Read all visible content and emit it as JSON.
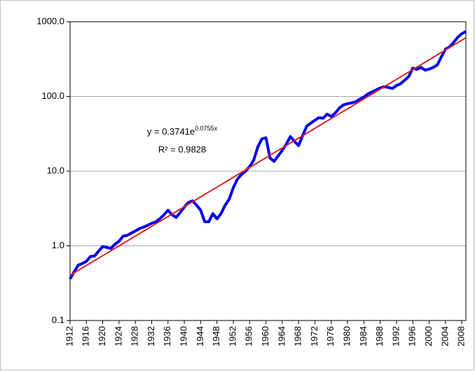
{
  "chart_data": {
    "type": "line",
    "log_scale": true,
    "grid": true,
    "categories": [
      1912,
      null,
      null,
      null,
      1916,
      null,
      null,
      null,
      1920,
      null,
      null,
      null,
      1924,
      null,
      null,
      null,
      1928,
      null,
      null,
      null,
      1932,
      null,
      null,
      null,
      1936,
      null,
      null,
      null,
      1940,
      null,
      null,
      null,
      1944,
      null,
      null,
      null,
      1948,
      null,
      null,
      null,
      1952,
      null,
      null,
      null,
      1956,
      null,
      null,
      null,
      1960,
      null,
      null,
      null,
      1964,
      null,
      null,
      null,
      1968,
      null,
      null,
      null,
      1972,
      null,
      null,
      null,
      1976,
      null,
      null,
      null,
      1980,
      null,
      null,
      null,
      1984,
      null,
      null,
      null,
      1988,
      null,
      null,
      null,
      1992,
      null,
      null,
      null,
      1996,
      null,
      null,
      null,
      2000,
      null,
      null,
      null,
      2004,
      null,
      null,
      null,
      2008,
      null
    ],
    "series": [
      {
        "color": "#0000ee",
        "values": [
          0.36,
          0.45,
          0.55,
          0.58,
          0.62,
          0.72,
          0.73,
          0.85,
          0.98,
          0.95,
          0.92,
          1.05,
          1.15,
          1.35,
          1.38,
          1.48,
          1.58,
          1.7,
          1.78,
          1.88,
          2.0,
          2.1,
          2.3,
          2.6,
          3.0,
          2.6,
          2.4,
          2.8,
          3.3,
          3.8,
          4.0,
          3.5,
          3.0,
          2.1,
          2.1,
          2.7,
          2.3,
          2.7,
          3.5,
          4.2,
          6.0,
          7.8,
          9.0,
          10.0,
          11.5,
          14,
          21,
          27,
          28,
          15,
          13.5,
          16,
          19,
          23,
          29,
          25,
          22,
          30,
          40,
          44,
          48,
          52,
          51,
          58,
          54,
          60,
          70,
          77,
          80,
          82,
          85,
          92,
          98,
          108,
          115,
          122,
          130,
          135,
          132,
          128,
          140,
          148,
          165,
          185,
          240,
          230,
          245,
          225,
          232,
          245,
          265,
          340,
          430,
          460,
          530,
          620,
          690,
          740
        ]
      },
      {
        "color": "#e02020",
        "values": [
          0.403,
          0.435,
          0.469,
          0.506,
          0.546,
          0.588,
          0.634,
          0.684,
          0.738,
          0.796,
          0.858,
          0.925,
          0.998,
          1.076,
          1.16,
          1.251,
          1.349,
          1.455,
          1.569,
          1.692,
          1.825,
          1.968,
          2.122,
          2.289,
          2.468,
          2.662,
          2.871,
          3.096,
          3.339,
          3.6,
          3.883,
          4.187,
          4.515,
          4.869,
          5.251,
          5.663,
          6.107,
          6.586,
          7.102,
          7.659,
          8.26,
          8.908,
          9.606,
          10.36,
          11.17,
          12.05,
          12.99,
          14.01,
          15.11,
          16.29,
          17.57,
          18.95,
          20.43,
          22.04,
          23.76,
          25.63,
          27.64,
          29.8,
          32.14,
          34.66,
          37.38,
          40.31,
          43.47,
          46.88,
          50.56,
          54.52,
          58.8,
          63.41,
          68.38,
          73.74,
          79.52,
          85.76,
          92.48,
          99.73,
          107.6,
          116.0,
          125.1,
          134.9,
          145.5,
          156.9,
          169.2,
          182.4,
          196.7,
          212.2,
          228.8,
          246.8,
          266.1,
          287.0,
          309.5,
          333.8,
          359.9,
          388.2,
          418.6,
          451.4,
          486.8,
          525.0,
          566.2,
          610.6
        ]
      }
    ],
    "ylim": [
      0.1,
      1000
    ],
    "yticks": [
      {
        "value": 0.1,
        "label": "0.1"
      },
      {
        "value": 1,
        "label": "1.0"
      },
      {
        "value": 10,
        "label": "10.0"
      },
      {
        "value": 100,
        "label": "100.0"
      },
      {
        "value": 1000,
        "label": "1000.0"
      }
    ],
    "annotation": {
      "equation": "y = 0.3741e",
      "exponent": "0.0755x",
      "r_squared": "R² = 0.9828"
    }
  }
}
